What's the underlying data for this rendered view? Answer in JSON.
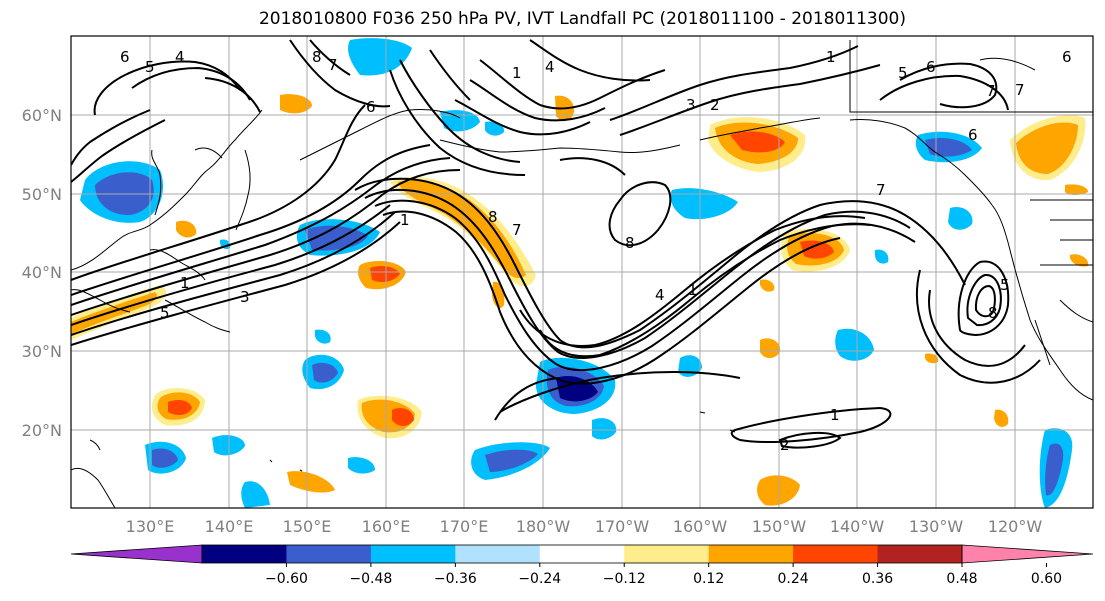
{
  "title": "2018010800 F036 250 hPa PV, IVT Landfall PC (2018011100 - 2018011300)",
  "latitude_labels": [
    "60°N",
    "50°N",
    "40°N",
    "30°N",
    "20°N"
  ],
  "longitude_labels": [
    "130°E",
    "140°E",
    "150°E",
    "160°E",
    "170°E",
    "180°W",
    "170°W",
    "160°W",
    "150°W",
    "140°W",
    "130°W",
    "120°W"
  ],
  "colorbar": {
    "ticks": [
      "−0.60",
      "−0.48",
      "−0.36",
      "−0.24",
      "−0.12",
      "0.12",
      "0.24",
      "0.36",
      "0.48",
      "0.60"
    ],
    "colors": [
      "#9932cc",
      "#000080",
      "#3a5fcd",
      "#00bfff",
      "#b0e2ff",
      "#ffffff",
      "#ffec8b",
      "#ffa500",
      "#ff4500",
      "#b22222",
      "#ff82ab"
    ]
  },
  "contour_labels": [
    "6",
    "5",
    "4",
    "8",
    "7",
    "6",
    "1",
    "4",
    "3",
    "2",
    "1",
    "5",
    "6",
    "7",
    "6",
    "8",
    "7",
    "8",
    "4",
    "1",
    "7",
    "6",
    "7",
    "5",
    "8",
    "1",
    "2",
    "1",
    "1",
    "3",
    "5"
  ]
}
